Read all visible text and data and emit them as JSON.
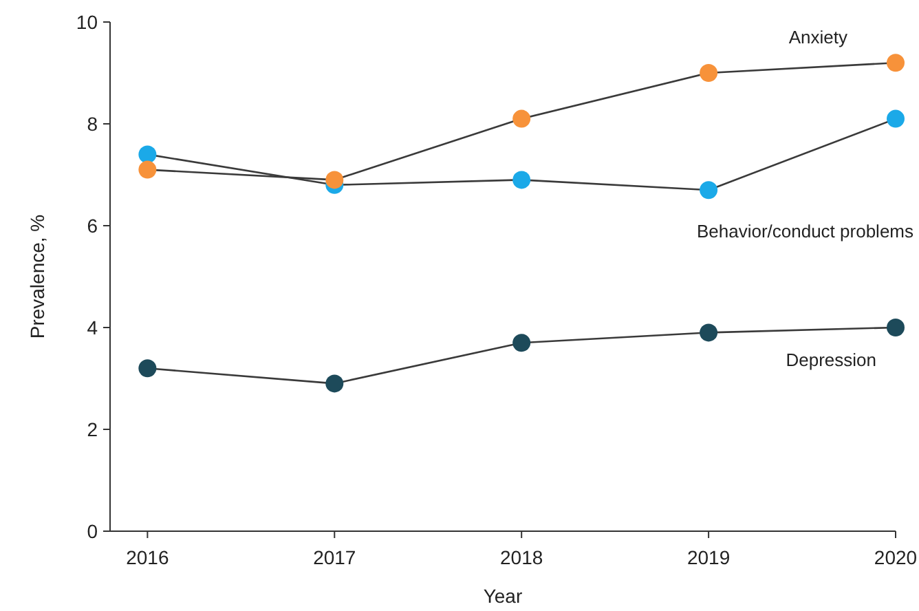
{
  "chart_data": {
    "type": "line",
    "xlabel": "Year",
    "ylabel": "Prevalence, %",
    "x": [
      2016,
      2017,
      2018,
      2019,
      2020
    ],
    "xlim": [
      2015.8,
      2020
    ],
    "xticks": [
      2016,
      2017,
      2018,
      2019,
      2020
    ],
    "ylim": [
      0,
      10
    ],
    "yticks": [
      0,
      2,
      4,
      6,
      8,
      10
    ],
    "grid": false,
    "legend": false,
    "marker": "circle",
    "line_style": "solid",
    "series": [
      {
        "name": "Anxiety",
        "color": "#f7923a",
        "values": [
          7.1,
          6.9,
          8.1,
          9.0,
          9.2
        ]
      },
      {
        "name": "Behavior/conduct problems",
        "color": "#1ba9e8",
        "values": [
          7.4,
          6.8,
          6.9,
          6.7,
          8.1
        ]
      },
      {
        "name": "Depression",
        "color": "#1d4a5a",
        "values": [
          3.2,
          2.9,
          3.7,
          3.9,
          4.0
        ]
      }
    ]
  }
}
